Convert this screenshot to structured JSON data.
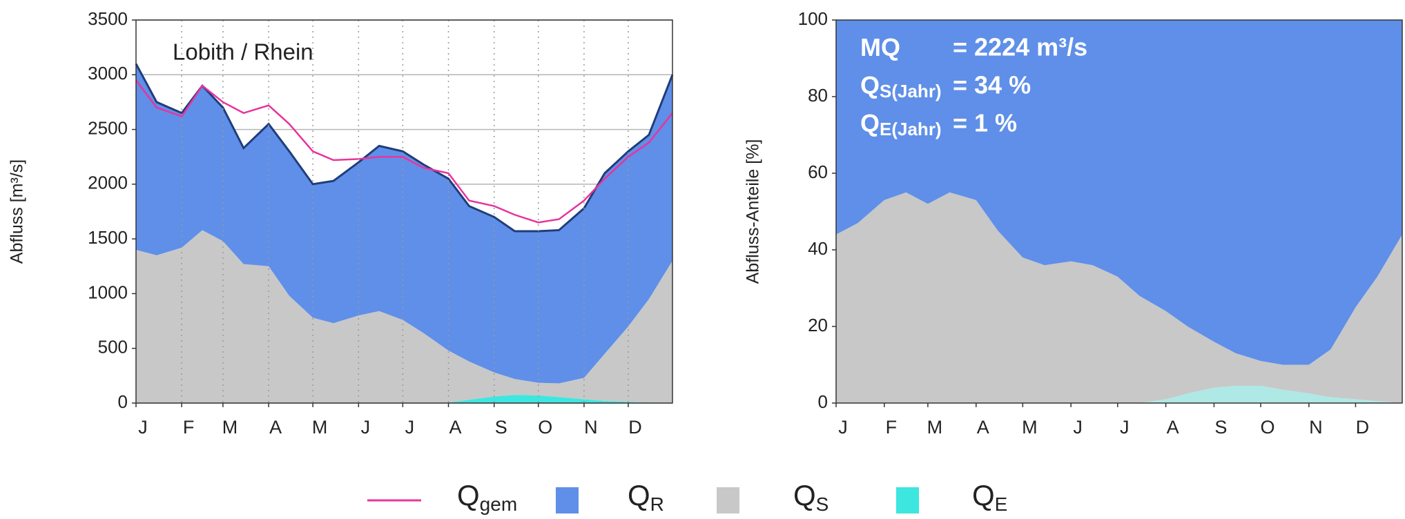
{
  "chart_data": [
    {
      "type": "area",
      "title": "Lobith / Rhein",
      "ylabel": "Abfluss [m³/s]",
      "x": [
        1,
        15,
        32,
        46,
        60,
        74,
        91,
        105,
        121,
        135,
        152,
        166,
        182,
        196,
        213,
        227,
        244,
        258,
        274,
        288,
        305,
        319,
        335,
        349,
        365
      ],
      "xlim": [
        1,
        365
      ],
      "xticks": [
        {
          "value": 1,
          "label": "J"
        },
        {
          "value": 32,
          "label": "F"
        },
        {
          "value": 60,
          "label": "M"
        },
        {
          "value": 91,
          "label": "A"
        },
        {
          "value": 121,
          "label": "M"
        },
        {
          "value": 152,
          "label": "J"
        },
        {
          "value": 182,
          "label": "J"
        },
        {
          "value": 213,
          "label": "A"
        },
        {
          "value": 244,
          "label": "S"
        },
        {
          "value": 274,
          "label": "O"
        },
        {
          "value": 305,
          "label": "N"
        },
        {
          "value": 335,
          "label": "D"
        }
      ],
      "ylim": [
        0,
        3500
      ],
      "yticks": [
        0,
        500,
        1000,
        1500,
        2000,
        2500,
        3000,
        3500
      ],
      "grid": true,
      "series": [
        {
          "name": "Q",
          "subscript": "gem",
          "type": "line",
          "color": "#e8349c",
          "values": [
            2950,
            2700,
            2620,
            2900,
            2750,
            2650,
            2720,
            2550,
            2300,
            2220,
            2230,
            2250,
            2250,
            2150,
            2100,
            1850,
            1800,
            1720,
            1650,
            1680,
            1850,
            2050,
            2250,
            2380,
            2650
          ]
        },
        {
          "name": "Q",
          "subscript": "R",
          "type": "area",
          "color": "#5f8fe8",
          "edge_color": "#1f3d7a",
          "values": [
            1700,
            1400,
            1230,
            1320,
            1220,
            1060,
            1300,
            1320,
            1220,
            1300,
            1400,
            1510,
            1540,
            1540,
            1570,
            1420,
            1420,
            1350,
            1385,
            1400,
            1550,
            1650,
            1600,
            1500,
            1700
          ]
        },
        {
          "name": "Q",
          "subscript": "S",
          "type": "area",
          "color": "#c8c8c8",
          "values": [
            1400,
            1350,
            1420,
            1580,
            1480,
            1270,
            1250,
            980,
            780,
            730,
            800,
            840,
            760,
            640,
            475,
            350,
            220,
            145,
            115,
            125,
            195,
            430,
            690,
            945,
            1300
          ]
        },
        {
          "name": "Q",
          "subscript": "E",
          "type": "area",
          "color": "#3ee6e0",
          "values": [
            0,
            0,
            0,
            0,
            0,
            0,
            0,
            0,
            0,
            0,
            0,
            0,
            0,
            0,
            5,
            30,
            60,
            75,
            70,
            55,
            35,
            20,
            10,
            5,
            0
          ]
        }
      ]
    },
    {
      "type": "area",
      "ylabel": "Abfluss-Anteile [%]",
      "x": [
        1,
        15,
        32,
        46,
        60,
        74,
        91,
        105,
        121,
        135,
        152,
        166,
        182,
        196,
        213,
        227,
        244,
        258,
        274,
        288,
        305,
        319,
        335,
        349,
        365
      ],
      "xlim": [
        1,
        365
      ],
      "xticks": [
        {
          "value": 1,
          "label": "J"
        },
        {
          "value": 32,
          "label": "F"
        },
        {
          "value": 60,
          "label": "M"
        },
        {
          "value": 91,
          "label": "A"
        },
        {
          "value": 121,
          "label": "M"
        },
        {
          "value": 152,
          "label": "J"
        },
        {
          "value": 182,
          "label": "J"
        },
        {
          "value": 213,
          "label": "A"
        },
        {
          "value": 244,
          "label": "S"
        },
        {
          "value": 274,
          "label": "O"
        },
        {
          "value": 305,
          "label": "N"
        },
        {
          "value": 335,
          "label": "D"
        }
      ],
      "ylim": [
        0,
        100
      ],
      "yticks": [
        0,
        20,
        40,
        60,
        80,
        100
      ],
      "grid": false,
      "annotations": [
        {
          "label": "MQ",
          "value": "= 2224 m³/s"
        },
        {
          "label": "Q",
          "subscript": "S(Jahr)",
          "value": "= 34 %"
        },
        {
          "label": "Q",
          "subscript": "E(Jahr)",
          "value": "= 1 %"
        }
      ],
      "series": [
        {
          "name": "Q",
          "subscript": "R",
          "type": "area",
          "color": "#5f8fe8",
          "values": [
            56,
            53,
            47,
            45,
            48,
            45,
            47,
            55,
            62,
            64,
            63,
            64,
            67,
            72,
            76,
            80,
            84,
            87,
            89,
            90,
            90,
            86,
            75,
            67,
            56
          ]
        },
        {
          "name": "Q",
          "subscript": "S",
          "type": "area",
          "color": "#c8c8c8",
          "values": [
            44,
            47,
            53,
            55,
            52,
            55,
            53,
            45,
            38,
            36,
            37,
            36,
            33,
            28,
            23,
            17.5,
            12,
            8.5,
            6.5,
            6.5,
            7.5,
            12.5,
            24,
            32.5,
            44
          ]
        },
        {
          "name": "Q",
          "subscript": "E",
          "type": "area",
          "color": "#aee9e6",
          "values": [
            0,
            0,
            0,
            0,
            0,
            0,
            0,
            0,
            0,
            0,
            0,
            0,
            0,
            0,
            1,
            2.5,
            4,
            4.5,
            4.5,
            3.5,
            2.5,
            1.5,
            1,
            0.5,
            0
          ]
        }
      ]
    }
  ]
}
